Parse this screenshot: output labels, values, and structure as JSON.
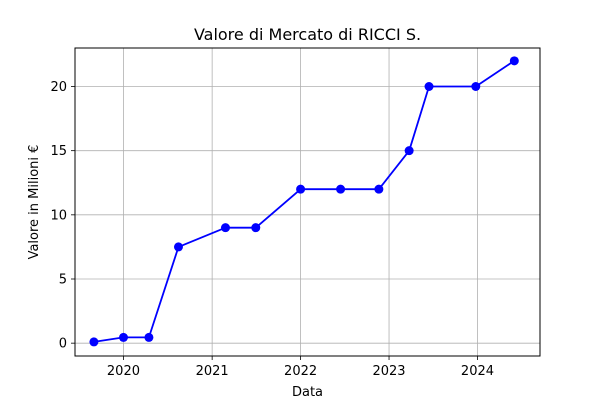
{
  "chart_data": {
    "type": "line",
    "title": "Valore di Mercato di RICCI S.",
    "xlabel": "Data",
    "ylabel": "Valore in Milioni €",
    "x_tick_labels": [
      "2020",
      "2021",
      "2022",
      "2023",
      "2024"
    ],
    "y_tick_labels": [
      "0",
      "5",
      "10",
      "15",
      "20"
    ],
    "x_ticks": [
      "2020-01-01",
      "2021-01-01",
      "2022-01-01",
      "2023-01-01",
      "2024-01-01"
    ],
    "y_ticks": [
      0,
      5,
      10,
      15,
      20
    ],
    "xlim": [
      "2019-06-15",
      "2024-09-15"
    ],
    "ylim": [
      -1,
      23
    ],
    "grid": true,
    "series": [
      {
        "color": "#0000ff",
        "marker": "circle",
        "points": [
          {
            "x": "2019-09-01",
            "y": 0.1
          },
          {
            "x": "2020-01-01",
            "y": 0.45
          },
          {
            "x": "2020-04-15",
            "y": 0.45
          },
          {
            "x": "2020-08-15",
            "y": 7.5
          },
          {
            "x": "2021-02-25",
            "y": 9
          },
          {
            "x": "2021-06-30",
            "y": 9
          },
          {
            "x": "2022-01-01",
            "y": 12
          },
          {
            "x": "2022-06-15",
            "y": 12
          },
          {
            "x": "2022-11-20",
            "y": 12
          },
          {
            "x": "2023-03-25",
            "y": 15
          },
          {
            "x": "2023-06-15",
            "y": 20
          },
          {
            "x": "2023-12-25",
            "y": 20
          },
          {
            "x": "2024-06-01",
            "y": 22
          }
        ]
      }
    ]
  }
}
